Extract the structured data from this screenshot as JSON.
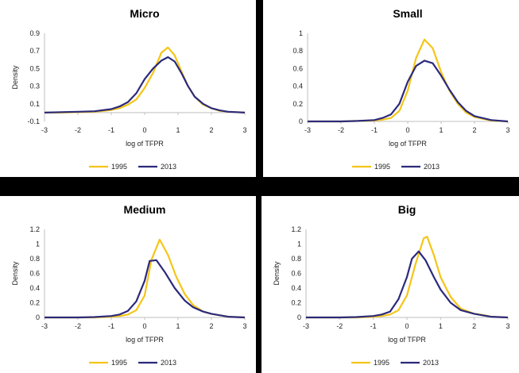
{
  "colors": {
    "s1995": "#F5C518",
    "s2013": "#2B2A7C"
  },
  "chart_data": [
    {
      "type": "line",
      "title": "Micro",
      "xlabel": "log of TFPR",
      "ylabel": "Density",
      "xlim": [
        -3,
        3
      ],
      "ylim": [
        -0.1,
        0.9
      ],
      "xticks": [
        "-3",
        "-2",
        "-1",
        "0",
        "1",
        "2",
        "3"
      ],
      "yticks": [
        "-0.1",
        "0.1",
        "0.3",
        "0.5",
        "0.7",
        "0.9"
      ],
      "legend": "bottom",
      "series": [
        {
          "name": "1995",
          "x": [
            -3,
            -2.5,
            -2,
            -1.5,
            -1,
            -0.75,
            -0.5,
            -0.25,
            0,
            0.25,
            0.5,
            0.7,
            0.9,
            1.1,
            1.3,
            1.5,
            1.75,
            2,
            2.25,
            2.5,
            2.75,
            3
          ],
          "values": [
            0,
            0,
            0.005,
            0.01,
            0.03,
            0.05,
            0.09,
            0.15,
            0.28,
            0.45,
            0.68,
            0.74,
            0.65,
            0.47,
            0.3,
            0.18,
            0.09,
            0.05,
            0.02,
            0.01,
            0.005,
            0
          ]
        },
        {
          "name": "2013",
          "x": [
            -3,
            -2.5,
            -2,
            -1.5,
            -1,
            -0.75,
            -0.5,
            -0.25,
            0,
            0.25,
            0.5,
            0.7,
            0.9,
            1.1,
            1.3,
            1.5,
            1.75,
            2,
            2.25,
            2.5,
            2.75,
            3
          ],
          "values": [
            0,
            0.005,
            0.01,
            0.015,
            0.04,
            0.07,
            0.12,
            0.22,
            0.38,
            0.5,
            0.59,
            0.63,
            0.58,
            0.45,
            0.3,
            0.18,
            0.1,
            0.05,
            0.025,
            0.01,
            0.005,
            0
          ]
        }
      ]
    },
    {
      "type": "line",
      "title": "Small",
      "xlabel": "log of TFPR",
      "ylabel": "",
      "xlim": [
        -3,
        3
      ],
      "ylim": [
        0,
        1
      ],
      "xticks": [
        "-3",
        "-2",
        "-1",
        "0",
        "1",
        "2",
        "3"
      ],
      "yticks": [
        "0",
        "0.2",
        "0.4",
        "0.6",
        "0.8",
        "1"
      ],
      "legend": "bottom",
      "series": [
        {
          "name": "1995",
          "x": [
            -3,
            -2.5,
            -2,
            -1.5,
            -1,
            -0.75,
            -0.5,
            -0.25,
            0,
            0.25,
            0.5,
            0.75,
            1,
            1.25,
            1.5,
            1.75,
            2,
            2.5,
            3
          ],
          "values": [
            0,
            0,
            0,
            0.005,
            0.01,
            0.02,
            0.04,
            0.12,
            0.35,
            0.72,
            0.93,
            0.83,
            0.56,
            0.35,
            0.2,
            0.1,
            0.05,
            0.01,
            0
          ]
        },
        {
          "name": "2013",
          "x": [
            -3,
            -2.5,
            -2,
            -1.5,
            -1,
            -0.75,
            -0.5,
            -0.25,
            0,
            0.25,
            0.5,
            0.75,
            1,
            1.25,
            1.5,
            1.75,
            2,
            2.5,
            3
          ],
          "values": [
            0,
            0,
            0,
            0.005,
            0.015,
            0.04,
            0.08,
            0.2,
            0.45,
            0.63,
            0.69,
            0.66,
            0.52,
            0.36,
            0.22,
            0.12,
            0.06,
            0.015,
            0
          ]
        }
      ]
    },
    {
      "type": "line",
      "title": "Medium",
      "xlabel": "log of TFPR",
      "ylabel": "Density",
      "xlim": [
        -3,
        3
      ],
      "ylim": [
        0,
        1.2
      ],
      "xticks": [
        "-3",
        "-2",
        "-1",
        "0",
        "1",
        "2",
        "3"
      ],
      "yticks": [
        "0",
        "0.2",
        "0.4",
        "0.6",
        "0.8",
        "1",
        "1.2"
      ],
      "legend": "bottom",
      "series": [
        {
          "name": "1995",
          "x": [
            -3,
            -2.5,
            -2,
            -1.5,
            -1,
            -0.75,
            -0.5,
            -0.25,
            0,
            0.2,
            0.45,
            0.7,
            0.95,
            1.2,
            1.45,
            1.75,
            2,
            2.5,
            3
          ],
          "values": [
            0,
            0,
            0,
            0,
            0.01,
            0.02,
            0.04,
            0.1,
            0.3,
            0.78,
            1.06,
            0.85,
            0.55,
            0.32,
            0.17,
            0.08,
            0.05,
            0.01,
            0
          ]
        },
        {
          "name": "2013",
          "x": [
            -3,
            -2.5,
            -2,
            -1.5,
            -1,
            -0.75,
            -0.5,
            -0.25,
            0,
            0.15,
            0.35,
            0.6,
            0.9,
            1.2,
            1.45,
            1.75,
            2,
            2.5,
            3
          ],
          "values": [
            0,
            0,
            0,
            0.005,
            0.02,
            0.04,
            0.09,
            0.22,
            0.5,
            0.77,
            0.78,
            0.62,
            0.4,
            0.23,
            0.14,
            0.08,
            0.05,
            0.01,
            0
          ]
        }
      ]
    },
    {
      "type": "line",
      "title": "Big",
      "xlabel": "log of TFPR",
      "ylabel": "Density",
      "xlim": [
        -3,
        3
      ],
      "ylim": [
        0,
        1.2
      ],
      "xticks": [
        "-3",
        "-2",
        "-1",
        "0",
        "1",
        "2",
        "3"
      ],
      "yticks": [
        "0",
        "0.2",
        "0.4",
        "0.6",
        "0.8",
        "1",
        "1.2"
      ],
      "legend": "bottom",
      "series": [
        {
          "name": "1995",
          "x": [
            -3,
            -2.5,
            -2,
            -1.5,
            -1,
            -0.75,
            -0.5,
            -0.25,
            0,
            0.25,
            0.5,
            0.6,
            0.8,
            1,
            1.3,
            1.6,
            2,
            2.3,
            2.5,
            3
          ],
          "values": [
            0,
            0,
            0,
            0,
            0.01,
            0.02,
            0.04,
            0.1,
            0.3,
            0.72,
            1.08,
            1.1,
            0.85,
            0.55,
            0.28,
            0.12,
            0.05,
            0.03,
            0.01,
            0
          ]
        },
        {
          "name": "2013",
          "x": [
            -3,
            -2.5,
            -2,
            -1.5,
            -1,
            -0.75,
            -0.5,
            -0.25,
            0,
            0.15,
            0.35,
            0.55,
            0.8,
            1,
            1.3,
            1.6,
            2,
            2.3,
            2.5,
            3
          ],
          "values": [
            0,
            0,
            0,
            0.005,
            0.02,
            0.04,
            0.08,
            0.25,
            0.55,
            0.8,
            0.9,
            0.78,
            0.55,
            0.38,
            0.2,
            0.1,
            0.05,
            0.025,
            0.01,
            0
          ]
        }
      ]
    }
  ]
}
